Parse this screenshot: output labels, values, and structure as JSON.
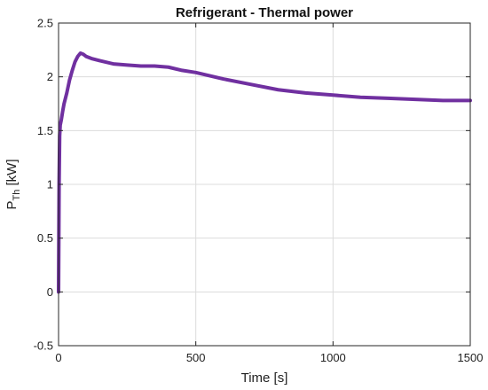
{
  "chart_data": {
    "type": "line",
    "title": "Refrigerant - Thermal power",
    "xlabel": "Time [s]",
    "ylabel": {
      "base": "P",
      "subscript": "Th",
      "unit": " [kW]"
    },
    "xlim": [
      0,
      1500
    ],
    "ylim": [
      -0.5,
      2.5
    ],
    "xticks": [
      0,
      500,
      1000,
      1500
    ],
    "xtick_labels": [
      "0",
      "500",
      "1000",
      "1500"
    ],
    "yticks": [
      -0.5,
      0,
      0.5,
      1,
      1.5,
      2,
      2.5
    ],
    "ytick_labels": [
      "-0.5",
      "0",
      "0.5",
      "1",
      "1.5",
      "2",
      "2.5"
    ],
    "grid": true,
    "series": [
      {
        "color": "#7030A0",
        "x": [
          0,
          2,
          4,
          6,
          10,
          15,
          20,
          30,
          40,
          50,
          60,
          70,
          80,
          90,
          100,
          120,
          150,
          200,
          250,
          300,
          350,
          400,
          450,
          500,
          550,
          600,
          700,
          800,
          900,
          1000,
          1100,
          1200,
          1300,
          1400,
          1500
        ],
        "y": [
          0.0,
          1.0,
          1.45,
          1.55,
          1.6,
          1.68,
          1.75,
          1.85,
          1.97,
          2.06,
          2.14,
          2.19,
          2.22,
          2.21,
          2.19,
          2.17,
          2.15,
          2.12,
          2.11,
          2.1,
          2.1,
          2.09,
          2.06,
          2.04,
          2.01,
          1.98,
          1.93,
          1.88,
          1.85,
          1.83,
          1.81,
          1.8,
          1.79,
          1.78,
          1.78
        ]
      }
    ]
  }
}
